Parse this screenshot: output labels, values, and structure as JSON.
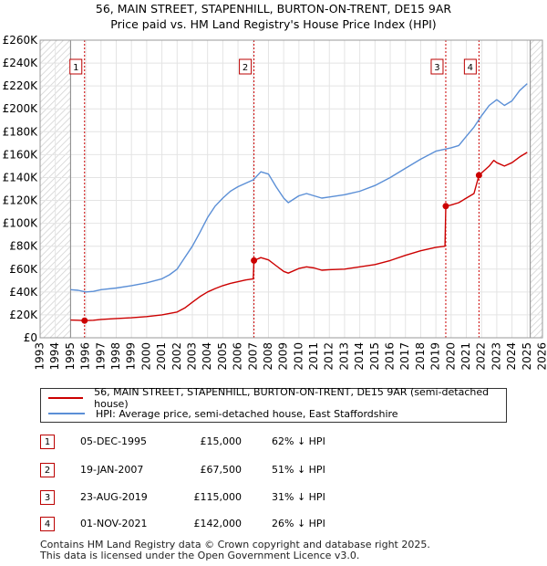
{
  "title_line1": "56, MAIN STREET, STAPENHILL, BURTON-ON-TRENT, DE15 9AR",
  "title_line2": "Price paid vs. HM Land Registry's House Price Index (HPI)",
  "chart_data": {
    "type": "line",
    "x_range": [
      1993,
      2026
    ],
    "ylim": [
      0,
      260000
    ],
    "y_ticks": [
      0,
      20000,
      40000,
      60000,
      80000,
      100000,
      120000,
      140000,
      160000,
      180000,
      200000,
      220000,
      240000,
      260000
    ],
    "y_tick_labels": [
      "£0",
      "£20K",
      "£40K",
      "£60K",
      "£80K",
      "£100K",
      "£120K",
      "£140K",
      "£160K",
      "£180K",
      "£200K",
      "£220K",
      "£240K",
      "£260K"
    ],
    "x_ticks": [
      1993,
      1994,
      1995,
      1996,
      1997,
      1998,
      1999,
      2000,
      2001,
      2002,
      2003,
      2004,
      2005,
      2006,
      2007,
      2008,
      2009,
      2010,
      2011,
      2012,
      2013,
      2014,
      2015,
      2016,
      2017,
      2018,
      2019,
      2020,
      2021,
      2022,
      2023,
      2024,
      2025,
      2026
    ],
    "data_start": 1995.0,
    "data_end": 2025.2,
    "series": [
      {
        "name": "56, MAIN STREET, STAPENHILL, BURTON-ON-TRENT, DE15 9AR (semi-detached house)",
        "color": "#cc0000",
        "points": [
          [
            1995.0,
            15500
          ],
          [
            1995.5,
            15300
          ],
          [
            1995.92,
            15000
          ],
          [
            1996.5,
            15300
          ],
          [
            1997.0,
            16000
          ],
          [
            1998.0,
            16800
          ],
          [
            1999.0,
            17500
          ],
          [
            2000.0,
            18500
          ],
          [
            2001.0,
            20000
          ],
          [
            2002.0,
            22500
          ],
          [
            2002.5,
            26000
          ],
          [
            2003.0,
            31000
          ],
          [
            2003.5,
            36000
          ],
          [
            2004.0,
            40000
          ],
          [
            2004.5,
            43000
          ],
          [
            2005.0,
            45500
          ],
          [
            2005.5,
            47500
          ],
          [
            2006.0,
            49000
          ],
          [
            2006.5,
            50500
          ],
          [
            2007.0,
            51500
          ],
          [
            2007.05,
            67500
          ],
          [
            2007.5,
            70000
          ],
          [
            2008.0,
            68000
          ],
          [
            2008.5,
            63000
          ],
          [
            2009.0,
            58000
          ],
          [
            2009.3,
            56500
          ],
          [
            2010.0,
            60500
          ],
          [
            2010.5,
            62000
          ],
          [
            2011.0,
            61000
          ],
          [
            2011.5,
            59000
          ],
          [
            2012.0,
            59500
          ],
          [
            2013.0,
            60000
          ],
          [
            2014.0,
            62000
          ],
          [
            2015.0,
            64000
          ],
          [
            2016.0,
            67500
          ],
          [
            2017.0,
            72000
          ],
          [
            2018.0,
            76000
          ],
          [
            2019.0,
            79000
          ],
          [
            2019.6,
            80000
          ],
          [
            2019.65,
            115000
          ],
          [
            2020.0,
            116000
          ],
          [
            2020.5,
            118000
          ],
          [
            2021.0,
            122000
          ],
          [
            2021.5,
            126000
          ],
          [
            2021.83,
            142000
          ],
          [
            2022.5,
            150000
          ],
          [
            2022.8,
            155000
          ],
          [
            2023.0,
            153000
          ],
          [
            2023.5,
            150000
          ],
          [
            2024.0,
            153000
          ],
          [
            2024.5,
            158000
          ],
          [
            2025.0,
            162000
          ]
        ]
      },
      {
        "name": "HPI: Average price, semi-detached house, East Staffordshire",
        "color": "#5b8fd6",
        "points": [
          [
            1995.0,
            42000
          ],
          [
            1995.5,
            41500
          ],
          [
            1996.0,
            40000
          ],
          [
            1996.5,
            40500
          ],
          [
            1997.0,
            42000
          ],
          [
            1998.0,
            43500
          ],
          [
            1999.0,
            45500
          ],
          [
            2000.0,
            48000
          ],
          [
            2001.0,
            51500
          ],
          [
            2001.5,
            55000
          ],
          [
            2002.0,
            60000
          ],
          [
            2002.5,
            70000
          ],
          [
            2003.0,
            80000
          ],
          [
            2003.5,
            92000
          ],
          [
            2004.0,
            105000
          ],
          [
            2004.5,
            115000
          ],
          [
            2005.0,
            122000
          ],
          [
            2005.5,
            128000
          ],
          [
            2006.0,
            132000
          ],
          [
            2006.5,
            135000
          ],
          [
            2007.0,
            138000
          ],
          [
            2007.5,
            145000
          ],
          [
            2008.0,
            143000
          ],
          [
            2008.5,
            132000
          ],
          [
            2009.0,
            122000
          ],
          [
            2009.3,
            118000
          ],
          [
            2010.0,
            124000
          ],
          [
            2010.5,
            126000
          ],
          [
            2011.0,
            124000
          ],
          [
            2011.5,
            122000
          ],
          [
            2012.0,
            123000
          ],
          [
            2013.0,
            125000
          ],
          [
            2014.0,
            128000
          ],
          [
            2015.0,
            133000
          ],
          [
            2016.0,
            140000
          ],
          [
            2017.0,
            148000
          ],
          [
            2018.0,
            156000
          ],
          [
            2019.0,
            163000
          ],
          [
            2020.0,
            166000
          ],
          [
            2020.5,
            168000
          ],
          [
            2021.0,
            176000
          ],
          [
            2021.5,
            184000
          ],
          [
            2022.0,
            194000
          ],
          [
            2022.5,
            203000
          ],
          [
            2023.0,
            208000
          ],
          [
            2023.5,
            203000
          ],
          [
            2024.0,
            207000
          ],
          [
            2024.5,
            216000
          ],
          [
            2025.0,
            222000
          ]
        ]
      }
    ],
    "sales": [
      {
        "marker": "1",
        "x": 1995.92,
        "price": 15000
      },
      {
        "marker": "2",
        "x": 2007.05,
        "price": 67500
      },
      {
        "marker": "3",
        "x": 2019.65,
        "price": 115000
      },
      {
        "marker": "4",
        "x": 2021.83,
        "price": 142000
      }
    ]
  },
  "legend": {
    "red_label": "56, MAIN STREET, STAPENHILL, BURTON-ON-TRENT, DE15 9AR (semi-detached house)",
    "blue_label": "HPI: Average price, semi-detached house, East Staffordshire"
  },
  "transactions": [
    {
      "num": "1",
      "date": "05-DEC-1995",
      "price": "£15,000",
      "hpi": "62% ↓ HPI"
    },
    {
      "num": "2",
      "date": "19-JAN-2007",
      "price": "£67,500",
      "hpi": "51% ↓ HPI"
    },
    {
      "num": "3",
      "date": "23-AUG-2019",
      "price": "£115,000",
      "hpi": "31% ↓ HPI"
    },
    {
      "num": "4",
      "date": "01-NOV-2021",
      "price": "£142,000",
      "hpi": "26% ↓ HPI"
    }
  ],
  "footer_line1": "Contains HM Land Registry data © Crown copyright and database right 2025.",
  "footer_line2": "This data is licensed under the Open Government Licence v3.0."
}
